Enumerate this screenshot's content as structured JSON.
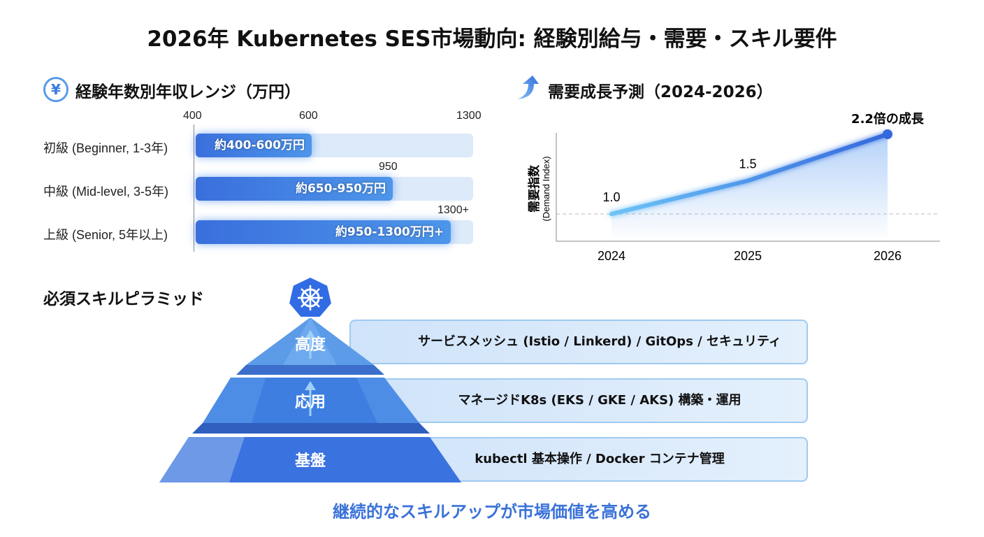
{
  "title": "2026年 Kubernetes SES市場動向: 経験別給与・需要・スキル要件",
  "salary": {
    "heading": "経験年数別年収レンジ（万円）",
    "icon": "yen-icon",
    "ticks": [
      "400",
      "600",
      "1300"
    ],
    "rows": [
      {
        "label": "初級 (Beginner, 1-3年)",
        "min": 400,
        "max": 600,
        "bar_label": "約400-600万円"
      },
      {
        "label": "中級 (Mid-level, 3-5年)",
        "min": 650,
        "max": 950,
        "bar_label": "約650-950万円",
        "end_label": "950"
      },
      {
        "label": "上級 (Senior, 5年以上)",
        "min": 950,
        "max": 1300,
        "bar_label": "約950-1300万円+",
        "end_label": "1300+"
      }
    ]
  },
  "demand": {
    "heading": "需要成長予測（2024-2026）",
    "icon": "arrow-up-icon",
    "annotation": "2.2倍の成長"
  },
  "chart_data": {
    "type": "line",
    "title": "需要成長予測（2024-2026）",
    "xlabel": "",
    "ylabel": "需要指数",
    "ylabel_sub": "(Demand Index)",
    "x": [
      "2024",
      "2025",
      "2026"
    ],
    "values": [
      1.0,
      1.5,
      2.2
    ],
    "data_labels": [
      "1.0",
      "1.5",
      ""
    ],
    "reference_line": 1.0,
    "grid": false,
    "color": "#3b7be0"
  },
  "pyramid": {
    "heading": "必須スキルピラミッド",
    "icon": "kubernetes-icon",
    "tiers": [
      {
        "label": "高度",
        "desc": "サービスメッシュ (Istio / Linkerd) / GitOps / セキュリティ"
      },
      {
        "label": "応用",
        "desc": "マネージドK8s (EKS / GKE / AKS) 構築・運用"
      },
      {
        "label": "基盤",
        "desc": "kubectl 基本操作 / Docker コンテナ管理"
      }
    ]
  },
  "footer": "継続的なスキルアップが市場価値を高める",
  "colors": {
    "accent": "#3a72d8",
    "bar": "#3a6fdc",
    "track": "#dceaf9"
  }
}
